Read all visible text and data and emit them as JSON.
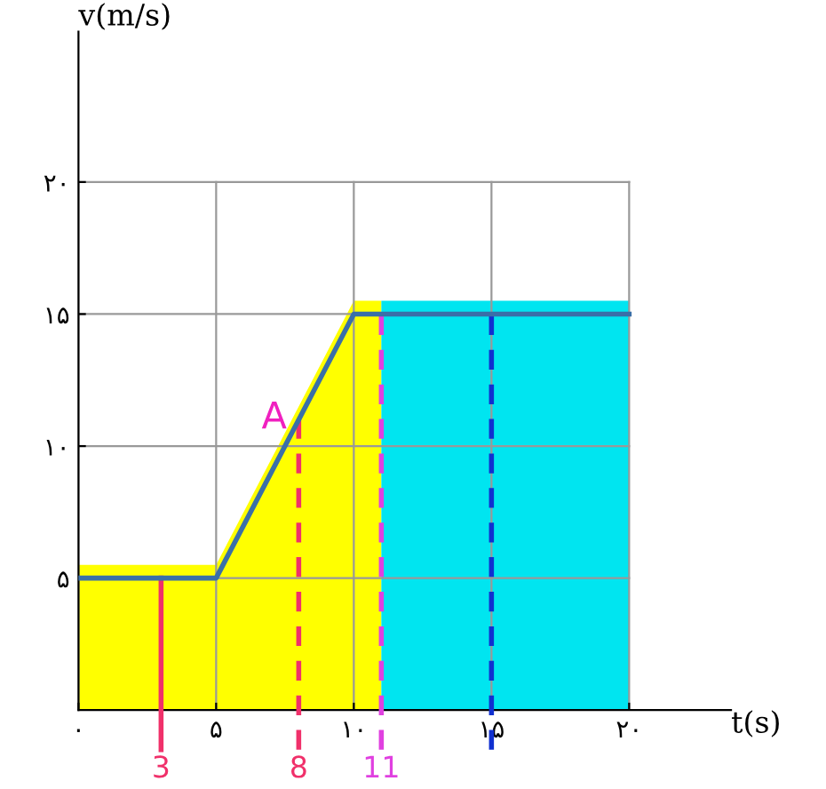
{
  "chart_data": {
    "type": "line",
    "xlabel": "t(s)",
    "ylabel": "v(m/s)",
    "x": [
      0,
      5,
      10,
      20
    ],
    "series": [
      {
        "color": "#3a6fa8",
        "values": [
          5,
          5,
          15,
          15
        ]
      }
    ],
    "xlim": [
      0,
      23.7
    ],
    "ylim": [
      0,
      25.7
    ],
    "xticks": [
      {
        "value": 0,
        "label": "۰"
      },
      {
        "value": 5,
        "label": "۵"
      },
      {
        "value": 10,
        "label": "۱۰"
      },
      {
        "value": 15,
        "label": "۱۵"
      },
      {
        "value": 20,
        "label": "۲۰"
      }
    ],
    "yticks": [
      {
        "value": 5,
        "label": "۵"
      },
      {
        "value": 10,
        "label": "۱۰"
      },
      {
        "value": 15,
        "label": "۱۵"
      },
      {
        "value": 20,
        "label": "۲۰"
      }
    ],
    "grid": true,
    "bands": [
      {
        "axis": "x",
        "from": 0,
        "to": 11,
        "color": "#ffff00"
      },
      {
        "axis": "x",
        "from": 11,
        "to": 20,
        "color": "#00e5f0"
      }
    ],
    "ref_lines": [
      {
        "axis": "x",
        "value": 3,
        "label": "3",
        "color": "#f0306a",
        "line_style": "solid"
      },
      {
        "axis": "x",
        "value": 8,
        "label": "8",
        "color": "#f0306a",
        "line_style": "dashed"
      },
      {
        "axis": "x",
        "value": 11,
        "label": "11",
        "color": "#e040e0",
        "line_style": "dashed"
      },
      {
        "axis": "x",
        "value": 15,
        "color": "#1030d0",
        "line_style": "dashed"
      }
    ],
    "annotations": [
      "A"
    ]
  }
}
